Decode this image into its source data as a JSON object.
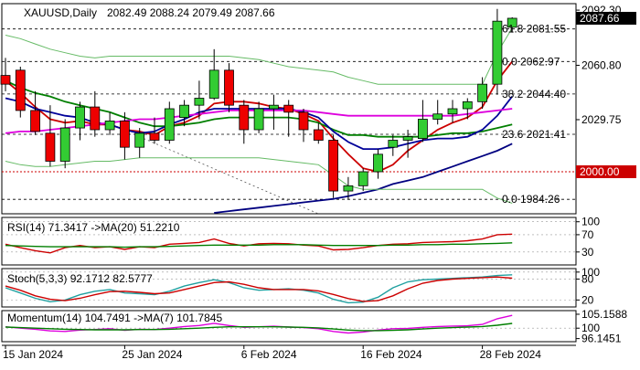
{
  "chart_data": {
    "type": "candlestick",
    "header": {
      "symbol": "XAUUSD,Daily",
      "ohlc": "2082.49 2088.24 2079.49 2087.66"
    },
    "x_labels": [
      {
        "label": "15 Jan 2024",
        "index": 0
      },
      {
        "label": "25 Jan 2024",
        "index": 8
      },
      {
        "label": "6 Feb 2024",
        "index": 16
      },
      {
        "label": "16 Feb 2024",
        "index": 24
      },
      {
        "label": "28 Feb 2024",
        "index": 32
      }
    ],
    "price_panel": {
      "ylim": [
        1976,
        2096
      ],
      "axis_ticks": [
        {
          "value": 2092.3,
          "label": "2092.30"
        },
        {
          "value": 2060.8,
          "label": "2060.80"
        },
        {
          "value": 2029.75,
          "label": "2029.75"
        }
      ],
      "last_price": {
        "value": 2087.66,
        "label": "2087.66",
        "color": "#000000"
      },
      "level_2000": {
        "value": 2000.0,
        "label": "2000.00",
        "color": "#cc0000"
      },
      "fib_levels": [
        {
          "value": 2081.55,
          "label": "61.8 2081.55"
        },
        {
          "value": 2062.97,
          "label": "0.0 2062.97"
        },
        {
          "value": 2044.4,
          "label": "38.2 2044.40"
        },
        {
          "value": 2021.41,
          "label": "23.6 2021.41"
        },
        {
          "value": 1984.26,
          "label": "0.0 1984.26"
        }
      ],
      "candles": [
        {
          "o": 2055,
          "h": 2065,
          "l": 2046,
          "c": 2050
        },
        {
          "o": 2058,
          "h": 2060,
          "l": 2031,
          "c": 2035
        },
        {
          "o": 2035,
          "h": 2046,
          "l": 2021,
          "c": 2023
        },
        {
          "o": 2022,
          "h": 2038,
          "l": 2003,
          "c": 2006
        },
        {
          "o": 2006,
          "h": 2030,
          "l": 2002,
          "c": 2025
        },
        {
          "o": 2025,
          "h": 2040,
          "l": 2018,
          "c": 2037
        },
        {
          "o": 2037,
          "h": 2046,
          "l": 2020,
          "c": 2024
        },
        {
          "o": 2024,
          "h": 2034,
          "l": 2021,
          "c": 2029
        },
        {
          "o": 2029,
          "h": 2034,
          "l": 2007,
          "c": 2014
        },
        {
          "o": 2014,
          "h": 2025,
          "l": 2008,
          "c": 2022
        },
        {
          "o": 2022,
          "h": 2031,
          "l": 2016,
          "c": 2018
        },
        {
          "o": 2018,
          "h": 2040,
          "l": 2016,
          "c": 2036
        },
        {
          "o": 2031,
          "h": 2041,
          "l": 2026,
          "c": 2038
        },
        {
          "o": 2038,
          "h": 2052,
          "l": 2030,
          "c": 2042
        },
        {
          "o": 2042,
          "h": 2070,
          "l": 2041,
          "c": 2058
        },
        {
          "o": 2058,
          "h": 2062,
          "l": 2034,
          "c": 2038
        },
        {
          "o": 2038,
          "h": 2041,
          "l": 2016,
          "c": 2024
        },
        {
          "o": 2024,
          "h": 2040,
          "l": 2022,
          "c": 2036
        },
        {
          "o": 2036,
          "h": 2044,
          "l": 2024,
          "c": 2038
        },
        {
          "o": 2038,
          "h": 2041,
          "l": 2020,
          "c": 2034
        },
        {
          "o": 2034,
          "h": 2036,
          "l": 2017,
          "c": 2024
        },
        {
          "o": 2024,
          "h": 2028,
          "l": 2016,
          "c": 2018
        },
        {
          "o": 2018,
          "h": 2021,
          "l": 1985,
          "c": 1989
        },
        {
          "o": 1989,
          "h": 1997,
          "l": 1984,
          "c": 1992
        },
        {
          "o": 1992,
          "h": 2002,
          "l": 1989,
          "c": 2000
        },
        {
          "o": 2000,
          "h": 2013,
          "l": 1996,
          "c": 2010
        },
        {
          "o": 2014,
          "h": 2021,
          "l": 2009,
          "c": 2018
        },
        {
          "o": 2018,
          "h": 2024,
          "l": 2008,
          "c": 2020
        },
        {
          "o": 2019,
          "h": 2041,
          "l": 2017,
          "c": 2030
        },
        {
          "o": 2030,
          "h": 2041,
          "l": 2027,
          "c": 2033
        },
        {
          "o": 2033,
          "h": 2041,
          "l": 2028,
          "c": 2036
        },
        {
          "o": 2036,
          "h": 2042,
          "l": 2030,
          "c": 2040
        },
        {
          "o": 2040,
          "h": 2054,
          "l": 2036,
          "c": 2050
        },
        {
          "o": 2050,
          "h": 2093,
          "l": 2044,
          "c": 2086
        },
        {
          "o": 2082.49,
          "h": 2088.24,
          "l": 2079.49,
          "c": 2087.66
        }
      ],
      "lines": [
        {
          "color": "#cc0000",
          "values": [
            2052,
            2045,
            2037,
            2030,
            2028,
            2029,
            2027,
            2027,
            2024,
            2023,
            2021,
            2026,
            2028,
            2032,
            2039,
            2040,
            2040,
            2039,
            2037,
            2036,
            2033,
            2029,
            2019,
            2010,
            2002,
            2000,
            2004,
            2012,
            2018,
            2024,
            2028,
            2031,
            2037,
            2052,
            2063
          ]
        },
        {
          "color": "#007f00",
          "values": [
            2052,
            2048,
            2045,
            2043,
            2040,
            2038,
            2036,
            2034,
            2031,
            2028,
            2026,
            2026,
            2027,
            2028,
            2030,
            2031,
            2031,
            2031,
            2031,
            2031,
            2030,
            2028,
            2024,
            2021,
            2021,
            2020,
            2020,
            2020,
            2020,
            2021,
            2022,
            2022,
            2023,
            2025,
            2027
          ]
        },
        {
          "color": "#000099",
          "values": [
            2042,
            2040,
            2036,
            2034,
            2032,
            2031,
            2028,
            2027,
            2024,
            2022,
            2023,
            2027,
            2030,
            2034,
            2036,
            2036,
            2036,
            2036,
            2036,
            2036,
            2034,
            2031,
            2023,
            2017,
            2013,
            2013,
            2014,
            2016,
            2018,
            2019,
            2019,
            2020,
            2024,
            2032,
            2043
          ]
        },
        {
          "color": "#dd00dd",
          "values": [
            2022,
            2023,
            2023,
            2024,
            2025,
            2026,
            2027,
            2028,
            2029,
            2030,
            2030,
            2031,
            2032,
            2033,
            2034,
            2035,
            2035,
            2035,
            2035,
            2035,
            2035,
            2034,
            2033,
            2032,
            2032,
            2032,
            2032,
            2032,
            2032,
            2032,
            2032,
            2033,
            2034,
            2035,
            2036
          ]
        },
        {
          "color": "#000080",
          "values": [
            null,
            null,
            null,
            null,
            null,
            null,
            null,
            null,
            null,
            null,
            null,
            null,
            null,
            null,
            1976.5,
            1977.5,
            1978.5,
            1979.5,
            1980.5,
            1981.5,
            1982.5,
            1983.5,
            1984.5,
            1986,
            1988,
            1990,
            1993,
            1995,
            1997,
            2000,
            2003,
            2006,
            2009,
            2012,
            2016
          ]
        },
        {
          "color": "#66bb66",
          "values": [
            2078,
            2076,
            2073,
            2070,
            2068,
            2066,
            2065,
            2066,
            2066,
            2066,
            2066,
            2066,
            2066,
            2066,
            2066,
            2066,
            2065,
            2064,
            2062,
            2060,
            2059,
            2058,
            2057,
            2054,
            2052,
            2050,
            2050,
            2050,
            2050,
            2050,
            2050,
            2050,
            2050,
            2068,
            2082
          ]
        },
        {
          "color": "#66bb66",
          "values": [
            2006,
            2004,
            2003,
            2003,
            2004,
            2005,
            2006,
            2006,
            2007,
            2008,
            2008,
            2008,
            2008,
            2008,
            2008,
            2008,
            2008,
            2008,
            2007,
            2006,
            2005,
            2004,
            1998,
            1992,
            1990,
            1990,
            1990,
            1990,
            1990,
            1990,
            1990,
            1990,
            1990,
            1985,
            1982
          ]
        }
      ],
      "trendline": {
        "from": {
          "index": 9,
          "value": 2020
        },
        "to": {
          "index": 21,
          "value": 1976
        }
      }
    },
    "rsi_panel": {
      "label": "RSI(14) 71.3417  ->MA(20) 51.2210",
      "ylim": [
        0,
        110
      ],
      "axis_ticks": [
        {
          "value": 100,
          "label": "100"
        },
        {
          "value": 70,
          "label": "70"
        },
        {
          "value": 30,
          "label": "30"
        }
      ],
      "series": [
        {
          "color": "#cc0000",
          "values": [
            48,
            40,
            33,
            28,
            40,
            45,
            40,
            42,
            36,
            42,
            40,
            48,
            50,
            52,
            60,
            50,
            44,
            49,
            50,
            49,
            46,
            44,
            35,
            36,
            40,
            45,
            48,
            49,
            52,
            53,
            54,
            56,
            60,
            70,
            71.34
          ]
        },
        {
          "color": "#007f00",
          "values": [
            45,
            44,
            43,
            42,
            42,
            42,
            42,
            42,
            41,
            42,
            42,
            43,
            44,
            45,
            46,
            46,
            46,
            46,
            47,
            47,
            47,
            46,
            45,
            45,
            45,
            45,
            46,
            46,
            47,
            47,
            48,
            48,
            49,
            50,
            51.22
          ]
        }
      ]
    },
    "stoch_panel": {
      "label": "Stoch(5,3,3) 92.1712 82.5777",
      "ylim": [
        0,
        110
      ],
      "axis_ticks": [
        {
          "value": 100,
          "label": "100"
        },
        {
          "value": 80,
          "label": "80"
        },
        {
          "value": 20,
          "label": "20"
        }
      ],
      "series": [
        {
          "color": "#20a0a0",
          "values": [
            55,
            40,
            25,
            15,
            20,
            35,
            45,
            50,
            40,
            38,
            35,
            45,
            60,
            70,
            78,
            70,
            55,
            48,
            50,
            52,
            48,
            40,
            22,
            12,
            14,
            28,
            55,
            72,
            78,
            80,
            82,
            84,
            86,
            90,
            92.17
          ]
        },
        {
          "color": "#cc0000",
          "values": [
            60,
            48,
            32,
            22,
            18,
            25,
            35,
            44,
            45,
            42,
            38,
            40,
            50,
            60,
            70,
            72,
            65,
            55,
            50,
            50,
            50,
            46,
            36,
            24,
            16,
            18,
            32,
            52,
            68,
            76,
            80,
            82,
            84,
            86,
            82.58
          ]
        }
      ]
    },
    "momentum_panel": {
      "label": "Momentum(14) 104.7491  ->MA(7) 101.7845",
      "ylim": [
        95,
        106.5
      ],
      "axis_ticks": [
        {
          "value": 105.1588,
          "label": "105.1588"
        },
        {
          "value": 100,
          "label": "100"
        },
        {
          "value": 96.1451,
          "label": "96.1451"
        }
      ],
      "series": [
        {
          "color": "#dd00dd",
          "values": [
            100.5,
            100,
            99.6,
            99,
            98.8,
            99.3,
            99.5,
            99.8,
            99.2,
            99.6,
            99.5,
            100,
            100.6,
            101,
            101.8,
            101,
            100.3,
            100.5,
            100.7,
            100.4,
            100.2,
            99.8,
            98.8,
            98.2,
            98.6,
            99.3,
            99.8,
            99.9,
            100.3,
            100.6,
            100.8,
            100.9,
            101.4,
            103.5,
            104.75
          ]
        },
        {
          "color": "#007f00",
          "values": [
            100.4,
            100.2,
            100,
            99.8,
            99.6,
            99.5,
            99.4,
            99.4,
            99.4,
            99.5,
            99.5,
            99.6,
            99.8,
            100,
            100.3,
            100.5,
            100.5,
            100.5,
            100.5,
            100.4,
            100.3,
            100.1,
            99.7,
            99.3,
            99.1,
            99.1,
            99.2,
            99.4,
            99.7,
            100,
            100.2,
            100.4,
            100.6,
            101.1,
            101.78
          ]
        }
      ]
    }
  }
}
